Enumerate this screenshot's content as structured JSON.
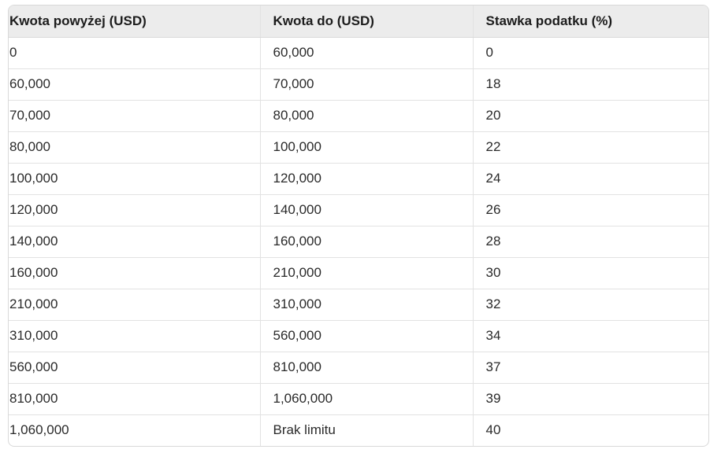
{
  "table": {
    "headers": [
      "Kwota powyżej (USD)",
      "Kwota do (USD)",
      "Stawka podatku (%)"
    ],
    "rows": [
      [
        "0",
        "60,000",
        "0"
      ],
      [
        "60,000",
        "70,000",
        "18"
      ],
      [
        "70,000",
        "80,000",
        "20"
      ],
      [
        "80,000",
        "100,000",
        "22"
      ],
      [
        "100,000",
        "120,000",
        "24"
      ],
      [
        "120,000",
        "140,000",
        "26"
      ],
      [
        "140,000",
        "160,000",
        "28"
      ],
      [
        "160,000",
        "210,000",
        "30"
      ],
      [
        "210,000",
        "310,000",
        "32"
      ],
      [
        "310,000",
        "560,000",
        "34"
      ],
      [
        "560,000",
        "810,000",
        "37"
      ],
      [
        "810,000",
        "1,060,000",
        "39"
      ],
      [
        "1,060,000",
        "Brak limitu",
        "40"
      ]
    ]
  },
  "colors": {
    "header_bg": "#ececec",
    "border": "#d9d9d9",
    "text": "#1f1f1f"
  }
}
